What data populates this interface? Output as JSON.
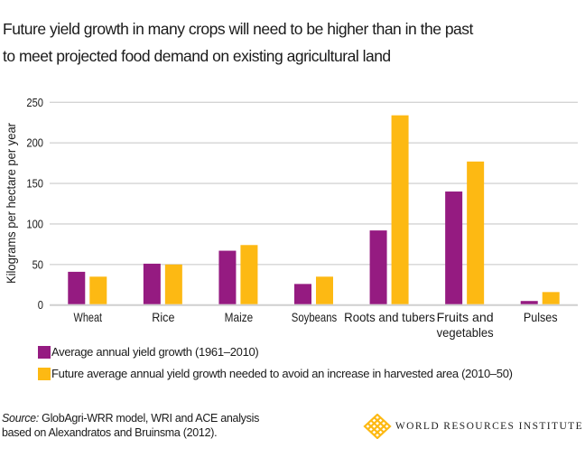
{
  "title_lines": [
    "Future yield growth in many crops will need to be higher than in the past",
    "to meet projected food demand on existing agricultural land"
  ],
  "chart_data": {
    "type": "bar",
    "categories": [
      "Wheat",
      "Rice",
      "Maize",
      "Soybeans",
      "Roots and tubers",
      "Fruits and vegetables",
      "Pulses"
    ],
    "category_label_lines": [
      [
        "Wheat"
      ],
      [
        "Rice"
      ],
      [
        "Maize"
      ],
      [
        "Soybeans"
      ],
      [
        "Roots and tubers"
      ],
      [
        "Fruits and",
        "vegetables"
      ],
      [
        "Pulses"
      ]
    ],
    "series": [
      {
        "name": "Average annual yield growth (1961–2010)",
        "color": "#951b81",
        "values": [
          41,
          51,
          67,
          26,
          92,
          140,
          5
        ]
      },
      {
        "name": "Future average annual yield growth needed to avoid an increase in harvested area (2010–50)",
        "color": "#fdb913",
        "values": [
          35,
          50,
          74,
          35,
          234,
          177,
          16
        ]
      }
    ],
    "ylabel": "Kilograms per hectare per year",
    "xlabel": "",
    "ylim": [
      0,
      250
    ],
    "yticks": [
      "0",
      "50",
      "100",
      "150",
      "200",
      "250"
    ],
    "grid": true,
    "legend_position": "bottom-left"
  },
  "source": {
    "label": "Source:",
    "text": " GlobAgri-WRR model, WRI and ACE analysis",
    "line2": "based on Alexandratos and Bruinsma (2012)."
  },
  "logo": {
    "text": "WORLD RESOURCES INSTITUTE",
    "color": "#fdb913"
  }
}
